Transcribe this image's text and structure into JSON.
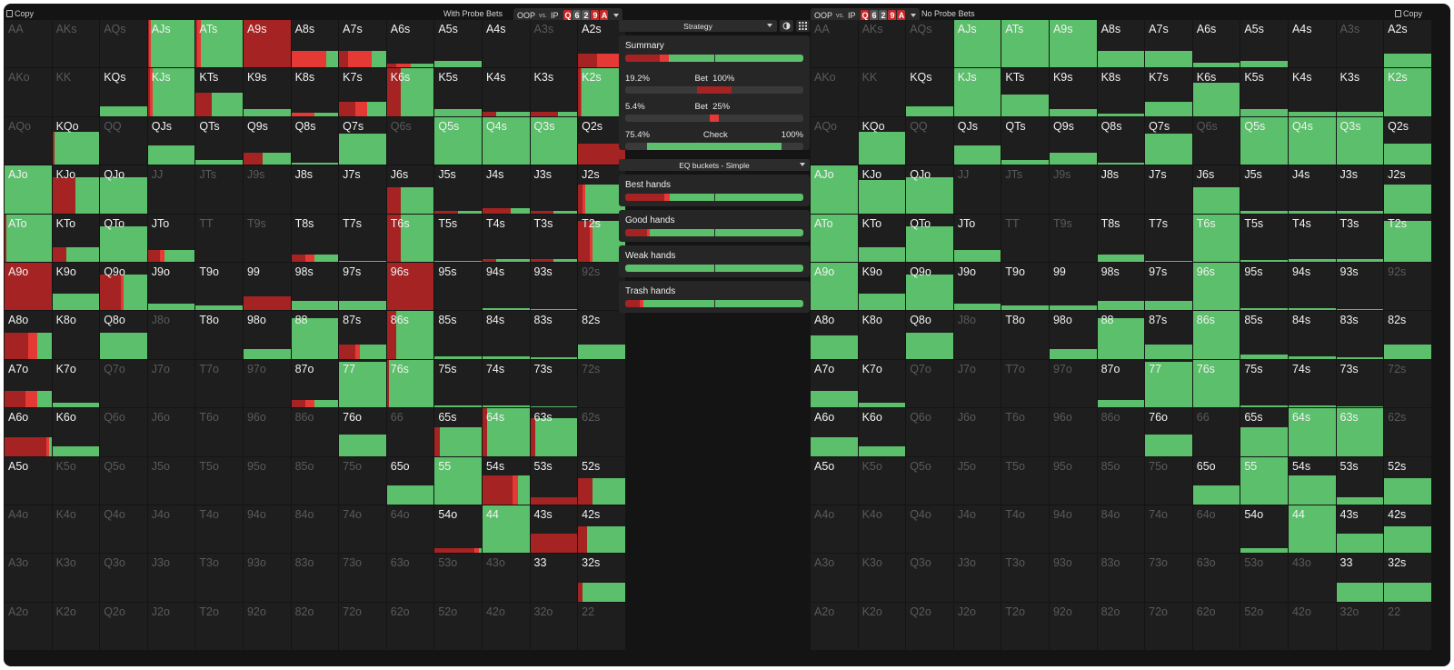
{
  "colors": {
    "bet": "#e53935",
    "bet_dark": "#a52323",
    "check": "#5cbf6b",
    "cell": "#1e1e1e"
  },
  "left": {
    "copy_label": "Copy",
    "mode_label": "With Probe Bets",
    "matchup": {
      "oop": "OOP",
      "vs": "vs.",
      "ip": "IP"
    },
    "board": [
      "Q",
      "6",
      "2",
      "9",
      "A"
    ]
  },
  "right": {
    "copy_label": "Copy",
    "mode_label": "No Probe Bets",
    "matchup": {
      "oop": "OOP",
      "vs": "vs.",
      "ip": "IP"
    },
    "board": [
      "Q",
      "6",
      "2",
      "9",
      "A"
    ]
  },
  "middle": {
    "strategy_label": "Strategy",
    "summary_title": "Summary",
    "actions": [
      {
        "pct": "19.2%",
        "name": "Bet",
        "size": "100%"
      },
      {
        "pct": "5.4%",
        "name": "Bet",
        "size": "25%"
      },
      {
        "pct": "75.4%",
        "name": "Check",
        "size": "100%"
      }
    ],
    "eq_label": "EQ buckets - Simple",
    "buckets": [
      {
        "title": "Best hands",
        "bet_big": 0.22,
        "bet_small": 0.03
      },
      {
        "title": "Good hands",
        "bet_big": 0.12,
        "bet_small": 0.02
      },
      {
        "title": "Weak hands",
        "bet_big": 0.0,
        "bet_small": 0.0
      },
      {
        "title": "Trash hands",
        "bet_big": 0.08,
        "bet_small": 0.02
      }
    ],
    "summary_mix": {
      "bet_big": 0.192,
      "bet_small": 0.054
    }
  },
  "hands": [
    [
      "AA",
      "AKs",
      "AQs",
      "AJs",
      "ATs",
      "A9s",
      "A8s",
      "A7s",
      "A6s",
      "A5s",
      "A4s",
      "A3s",
      "A2s"
    ],
    [
      "AKo",
      "KK",
      "KQs",
      "KJs",
      "KTs",
      "K9s",
      "K8s",
      "K7s",
      "K6s",
      "K5s",
      "K4s",
      "K3s",
      "K2s"
    ],
    [
      "AQo",
      "KQo",
      "QQ",
      "QJs",
      "QTs",
      "Q9s",
      "Q8s",
      "Q7s",
      "Q6s",
      "Q5s",
      "Q4s",
      "Q3s",
      "Q2s"
    ],
    [
      "AJo",
      "KJo",
      "QJo",
      "JJ",
      "JTs",
      "J9s",
      "J8s",
      "J7s",
      "J6s",
      "J5s",
      "J4s",
      "J3s",
      "J2s"
    ],
    [
      "ATo",
      "KTo",
      "QTo",
      "JTo",
      "TT",
      "T9s",
      "T8s",
      "T7s",
      "T6s",
      "T5s",
      "T4s",
      "T3s",
      "T2s"
    ],
    [
      "A9o",
      "K9o",
      "Q9o",
      "J9o",
      "T9o",
      "99",
      "98s",
      "97s",
      "96s",
      "95s",
      "94s",
      "93s",
      "92s"
    ],
    [
      "A8o",
      "K8o",
      "Q8o",
      "J8o",
      "T8o",
      "98o",
      "88",
      "87s",
      "86s",
      "85s",
      "84s",
      "83s",
      "82s"
    ],
    [
      "A7o",
      "K7o",
      "Q7o",
      "J7o",
      "T7o",
      "97o",
      "87o",
      "77",
      "76s",
      "75s",
      "74s",
      "73s",
      "72s"
    ],
    [
      "A6o",
      "K6o",
      "Q6o",
      "J6o",
      "T6o",
      "96o",
      "86o",
      "76o",
      "66",
      "65s",
      "64s",
      "63s",
      "62s"
    ],
    [
      "A5o",
      "K5o",
      "Q5o",
      "J5o",
      "T5o",
      "95o",
      "85o",
      "75o",
      "65o",
      "55",
      "54s",
      "53s",
      "52s"
    ],
    [
      "A4o",
      "K4o",
      "Q4o",
      "J4o",
      "T4o",
      "94o",
      "84o",
      "74o",
      "64o",
      "54o",
      "44",
      "43s",
      "42s"
    ],
    [
      "A3o",
      "K3o",
      "Q3o",
      "J3o",
      "T3o",
      "93o",
      "83o",
      "73o",
      "63o",
      "53o",
      "43o",
      "33",
      "32s"
    ],
    [
      "A2o",
      "K2o",
      "Q2o",
      "J2o",
      "T2o",
      "92o",
      "82o",
      "72o",
      "62o",
      "52o",
      "42o",
      "32o",
      "22"
    ]
  ]
}
